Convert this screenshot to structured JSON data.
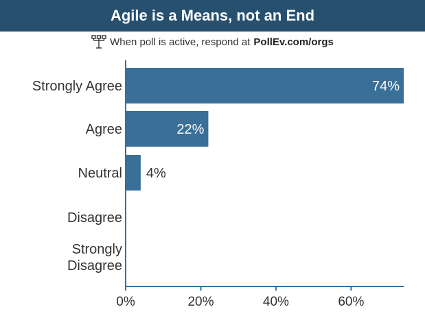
{
  "header": {
    "title": "Agile is a Means, not an End"
  },
  "respond": {
    "prefix": "When poll is active, respond at",
    "url": "PollEv.com/orgs",
    "icon": "poll-antenna-icon"
  },
  "colors": {
    "header_bg": "#27506f",
    "bar": "#3a6f98",
    "axis": "#3a6f98",
    "label": "#333333",
    "inside_label": "#ffffff"
  },
  "chart_data": {
    "type": "bar",
    "orientation": "horizontal",
    "categories": [
      [
        "Strongly Agree"
      ],
      [
        "Agree"
      ],
      [
        "Neutral"
      ],
      [
        "Disagree"
      ],
      [
        "Strongly",
        "Disagree"
      ]
    ],
    "values": [
      74,
      22,
      4,
      0,
      0
    ],
    "value_labels": [
      "74%",
      "22%",
      "4%",
      "",
      ""
    ],
    "xlim": [
      0,
      74
    ],
    "xticks": [
      0,
      20,
      40,
      60
    ],
    "xtick_labels": [
      "0%",
      "20%",
      "40%",
      "60%"
    ],
    "grid": false,
    "legend": "none"
  }
}
